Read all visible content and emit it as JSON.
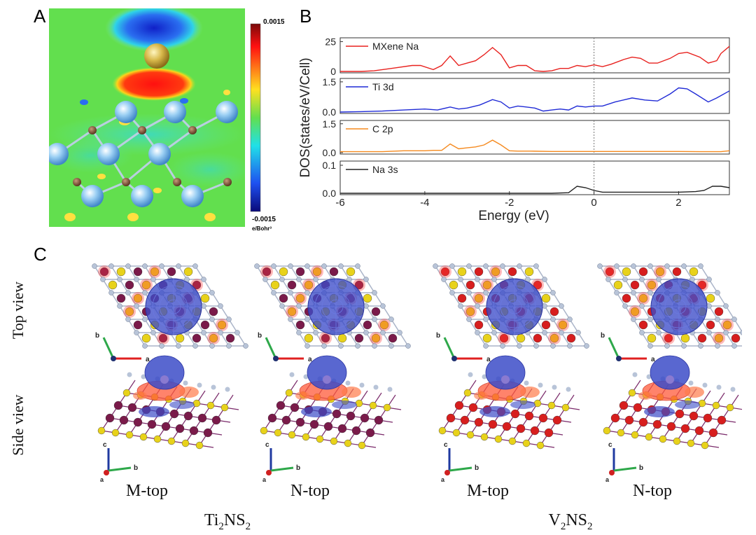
{
  "panels": {
    "a": {
      "letter": "A",
      "colorbar": {
        "max": "0.0015",
        "min": "-0.0015",
        "unit": "e/Bohr³"
      }
    },
    "b": {
      "letter": "B"
    },
    "c": {
      "letter": "C",
      "row_labels": [
        "Top view",
        "Side view"
      ],
      "site_labels": [
        "M-top",
        "N-top",
        "M-top",
        "N-top"
      ],
      "materials": [
        {
          "base": "Ti",
          "sub1": "2",
          "mid": "NS",
          "sub2": "2"
        },
        {
          "base": "V",
          "sub1": "2",
          "mid": "NS",
          "sub2": "2"
        }
      ],
      "axis_letters": {
        "a": "a",
        "b": "b",
        "c": "c"
      }
    }
  },
  "colors": {
    "mxene": "#e8211e",
    "ti": "#1f2ad6",
    "c2p": "#f58a1f",
    "na": "#222222",
    "ti_atom": "#7a1a4a",
    "v_atom": "#d71e1e",
    "s_atom": "#e8d21a",
    "n_atom": "#b8c4d8"
  },
  "chart_data": {
    "type": "line",
    "ylabel": "DOS(states/eV/Cell)",
    "xlabel": "Energy (eV)",
    "xlim": [
      -6,
      3.2
    ],
    "xticks": [
      "-6",
      "-4",
      "-2",
      "0",
      "2"
    ],
    "fermi_level": 0,
    "subplots": [
      {
        "name": "MXene Na",
        "color": "#e8211e",
        "ylim": [
          0,
          27
        ],
        "yticks": [
          "25",
          "0"
        ],
        "ytick_values": [
          25,
          0
        ],
        "x": [
          -6,
          -5.5,
          -5.2,
          -5,
          -4.7,
          -4.3,
          -4.1,
          -3.8,
          -3.6,
          -3.4,
          -3.2,
          -3,
          -2.8,
          -2.6,
          -2.4,
          -2.2,
          -2,
          -1.8,
          -1.6,
          -1.4,
          -1.2,
          -1,
          -0.8,
          -0.6,
          -0.4,
          -0.2,
          0,
          0.2,
          0.4,
          0.7,
          0.9,
          1.1,
          1.3,
          1.5,
          1.8,
          2,
          2.2,
          2.5,
          2.7,
          2.9,
          3,
          3.2
        ],
        "y": [
          0,
          0,
          0.5,
          1.5,
          3,
          5,
          5,
          1.5,
          5,
          13,
          5,
          7,
          9,
          14,
          20,
          14,
          3,
          5,
          5,
          0.5,
          0,
          0.5,
          2.5,
          2.5,
          5,
          4,
          5.5,
          4,
          6,
          10,
          12,
          11,
          7,
          7,
          11,
          15,
          16,
          12,
          7,
          9,
          15,
          21
        ]
      },
      {
        "name": "Ti 3d",
        "color": "#1f2ad6",
        "ylim": [
          0,
          1.6
        ],
        "yticks": [
          "1.5",
          "0.0"
        ],
        "ytick_values": [
          1.5,
          0
        ],
        "x": [
          -6,
          -5.5,
          -5,
          -4.5,
          -4,
          -3.7,
          -3.4,
          -3.2,
          -3,
          -2.7,
          -2.4,
          -2.2,
          -2,
          -1.8,
          -1.6,
          -1.4,
          -1.2,
          -1,
          -0.8,
          -0.6,
          -0.4,
          -0.2,
          0,
          0.2,
          0.5,
          0.9,
          1.2,
          1.5,
          1.8,
          2,
          2.2,
          2.4,
          2.7,
          2.9,
          3.2
        ],
        "y": [
          0,
          0.02,
          0.05,
          0.1,
          0.15,
          0.1,
          0.25,
          0.15,
          0.2,
          0.35,
          0.62,
          0.5,
          0.2,
          0.3,
          0.25,
          0.2,
          0.05,
          0.1,
          0.15,
          0.1,
          0.3,
          0.25,
          0.3,
          0.3,
          0.5,
          0.7,
          0.6,
          0.55,
          0.9,
          1.2,
          1.15,
          0.9,
          0.5,
          0.7,
          1.05
        ]
      },
      {
        "name": "C 2p",
        "color": "#f58a1f",
        "ylim": [
          0,
          1.6
        ],
        "yticks": [
          "1.5",
          "0.0"
        ],
        "ytick_values": [
          1.5,
          0
        ],
        "x": [
          -6,
          -5,
          -4.5,
          -4,
          -3.8,
          -3.6,
          -3.4,
          -3.2,
          -3,
          -2.8,
          -2.6,
          -2.4,
          -2.2,
          -2,
          -1.8,
          -1.5,
          -1,
          0,
          1,
          2,
          2.5,
          3,
          3.2
        ],
        "y": [
          0.05,
          0.05,
          0.1,
          0.1,
          0.12,
          0.12,
          0.45,
          0.2,
          0.25,
          0.3,
          0.4,
          0.65,
          0.4,
          0.1,
          0.08,
          0.08,
          0.06,
          0.06,
          0.06,
          0.06,
          0.05,
          0.05,
          0.1
        ]
      },
      {
        "name": "Na 3s",
        "color": "#222222",
        "ylim": [
          0,
          0.11
        ],
        "yticks": [
          "0.1",
          "0.0"
        ],
        "ytick_values": [
          0.1,
          0
        ],
        "x": [
          -6,
          -3,
          -1,
          -0.6,
          -0.4,
          -0.2,
          0,
          0.2,
          0.6,
          1,
          2,
          2.4,
          2.6,
          2.8,
          3,
          3.2
        ],
        "y": [
          0,
          0,
          0,
          0.002,
          0.025,
          0.02,
          0.01,
          0.004,
          0.004,
          0.004,
          0.004,
          0.006,
          0.01,
          0.025,
          0.025,
          0.02
        ]
      }
    ]
  }
}
